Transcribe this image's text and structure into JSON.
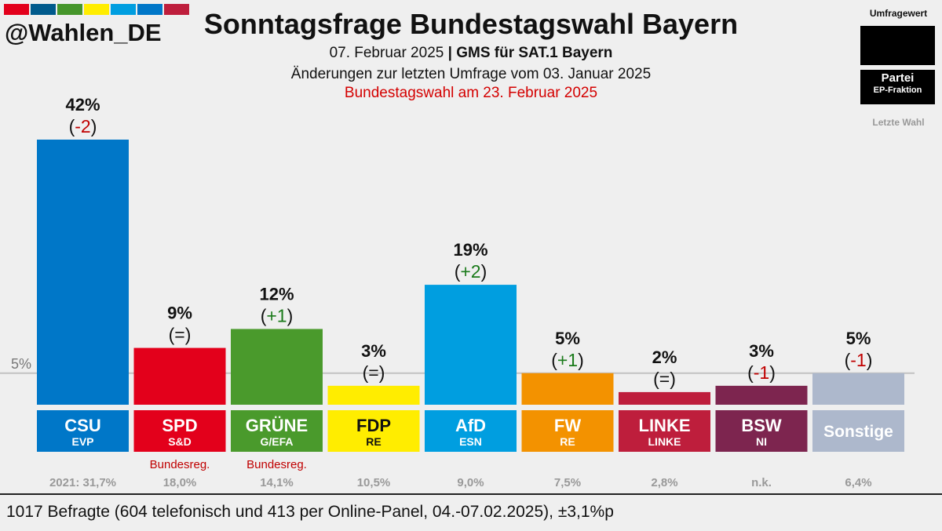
{
  "header": {
    "handle": "@Wahlen_DE",
    "title": "Sonntagsfrage Bundestagswahl Bayern",
    "date": "07. Februar 2025",
    "separator": "|",
    "institute": "GMS für SAT.1 Bayern",
    "changes_note": "Änderungen zur letzten Umfrage vom 03. Januar 2025",
    "election_note": "Bundestagswahl am 23. Februar 2025",
    "stripe_colors": [
      "#e3001b",
      "#005a8c",
      "#46962b",
      "#ffed00",
      "#009ee0",
      "#0077c8",
      "#be1e3c"
    ]
  },
  "legend": {
    "value_label": "Umfragewert",
    "party_label": "Partei",
    "group_label": "EP-Fraktion",
    "last_label": "Letzte Wahl"
  },
  "chart_data": {
    "type": "bar",
    "threshold_label": "5%",
    "threshold": 5,
    "ylim": [
      0,
      42
    ],
    "last_election_year_label": "2021:",
    "categories": [
      "CSU",
      "SPD",
      "GRÜNE",
      "FDP",
      "AfD",
      "FW",
      "LINKE",
      "BSW",
      "Sonstige"
    ],
    "bars": [
      {
        "party": "CSU",
        "group": "EVP",
        "value": 42,
        "value_label": "42%",
        "change": "-2",
        "change_color": "#c00000",
        "color": "#0077c8",
        "note": "",
        "last": "31,7%"
      },
      {
        "party": "SPD",
        "group": "S&D",
        "value": 9,
        "value_label": "9%",
        "change": "=",
        "change_color": "#111111",
        "color": "#e3001b",
        "note": "Bundesreg.",
        "last": "18,0%"
      },
      {
        "party": "GRÜNE",
        "group": "G/EFA",
        "value": 12,
        "value_label": "12%",
        "change": "+1",
        "change_color": "#1a7a1a",
        "color": "#4a9a2c",
        "note": "Bundesreg.",
        "last": "14,1%"
      },
      {
        "party": "FDP",
        "group": "RE",
        "value": 3,
        "value_label": "3%",
        "change": "=",
        "change_color": "#111111",
        "color": "#ffed00",
        "note": "",
        "last": "10,5%"
      },
      {
        "party": "AfD",
        "group": "ESN",
        "value": 19,
        "value_label": "19%",
        "change": "+2",
        "change_color": "#1a7a1a",
        "color": "#009ee0",
        "note": "",
        "last": "9,0%"
      },
      {
        "party": "FW",
        "group": "RE",
        "value": 5,
        "value_label": "5%",
        "change": "+1",
        "change_color": "#1a7a1a",
        "color": "#f39200",
        "note": "",
        "last": "7,5%"
      },
      {
        "party": "LINKE",
        "group": "LINKE",
        "value": 2,
        "value_label": "2%",
        "change": "=",
        "change_color": "#111111",
        "color": "#be1e3c",
        "note": "",
        "last": "2,8%"
      },
      {
        "party": "BSW",
        "group": "NI",
        "value": 3,
        "value_label": "3%",
        "change": "-1",
        "change_color": "#c00000",
        "color": "#7d254f",
        "note": "",
        "last": "n.k."
      },
      {
        "party": "Sonstige",
        "group": "",
        "value": 5,
        "value_label": "5%",
        "change": "-1",
        "change_color": "#c00000",
        "color": "#adb8cc",
        "note": "",
        "last": "6,4%"
      }
    ]
  },
  "footer": {
    "text": "1017 Befragte (604 telefonisch und 413 per Online-Panel, 04.-07.02.2025), ±3,1%p"
  }
}
